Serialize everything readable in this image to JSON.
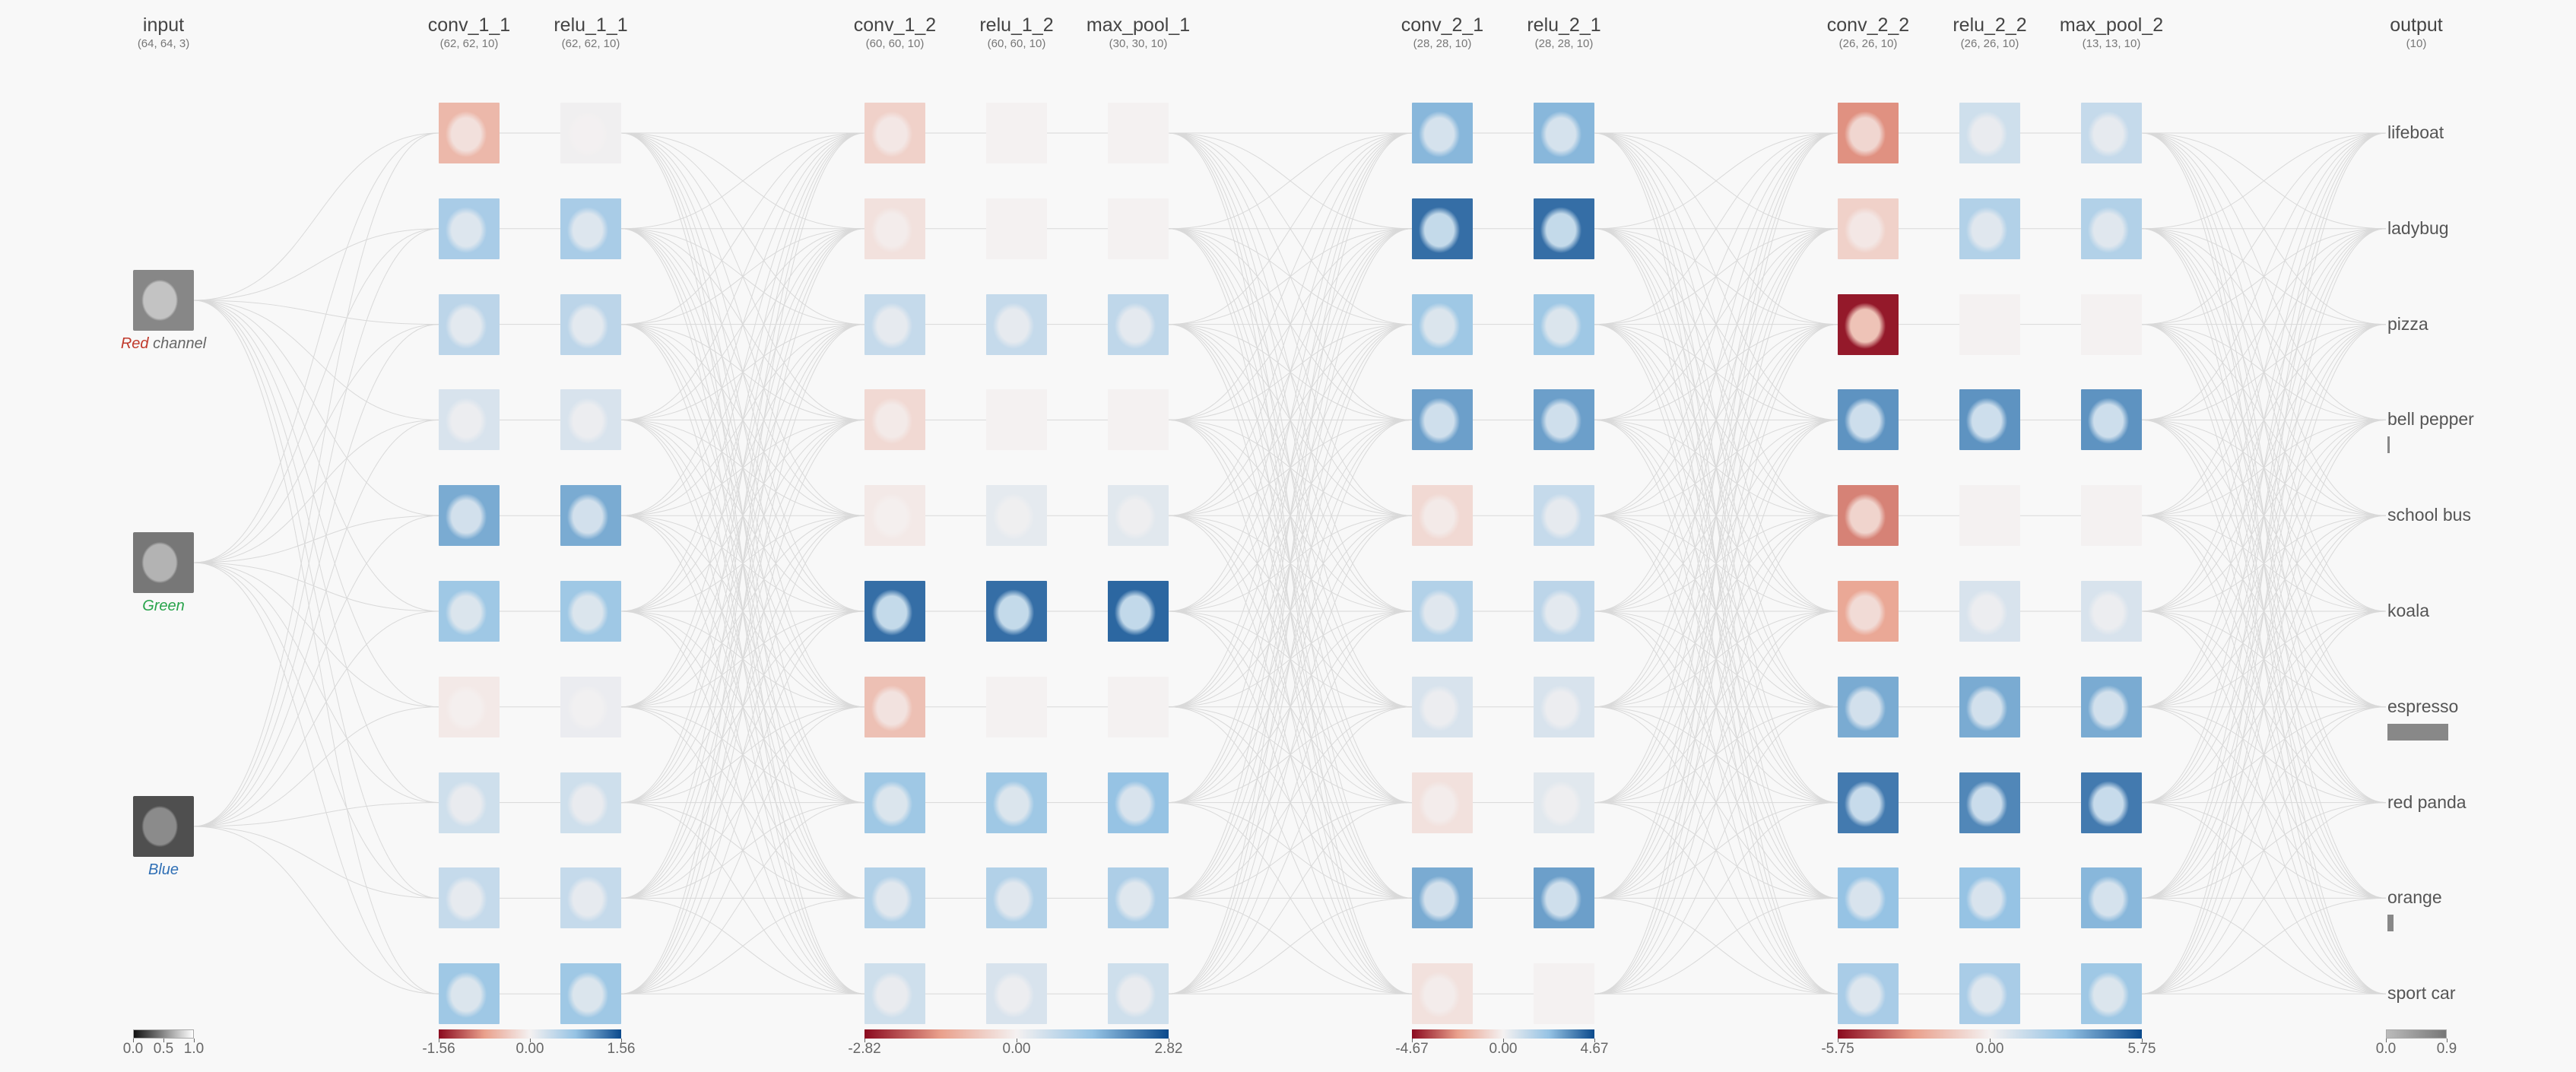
{
  "columns": [
    {
      "id": "input",
      "title": "input",
      "dims": "(64, 64, 3)"
    },
    {
      "id": "conv_1_1",
      "title": "conv_1_1",
      "dims": "(62, 62, 10)"
    },
    {
      "id": "relu_1_1",
      "title": "relu_1_1",
      "dims": "(62, 62, 10)"
    },
    {
      "id": "conv_1_2",
      "title": "conv_1_2",
      "dims": "(60, 60, 10)"
    },
    {
      "id": "relu_1_2",
      "title": "relu_1_2",
      "dims": "(60, 60, 10)"
    },
    {
      "id": "max_pool_1",
      "title": "max_pool_1",
      "dims": "(30, 30, 10)"
    },
    {
      "id": "conv_2_1",
      "title": "conv_2_1",
      "dims": "(28, 28, 10)"
    },
    {
      "id": "relu_2_1",
      "title": "relu_2_1",
      "dims": "(28, 28, 10)"
    },
    {
      "id": "conv_2_2",
      "title": "conv_2_2",
      "dims": "(26, 26, 10)"
    },
    {
      "id": "relu_2_2",
      "title": "relu_2_2",
      "dims": "(26, 26, 10)"
    },
    {
      "id": "max_pool_2",
      "title": "max_pool_2",
      "dims": "(13, 13, 10)"
    },
    {
      "id": "output",
      "title": "output",
      "dims": "(10)"
    }
  ],
  "input_channels": [
    {
      "name": "Red",
      "suffix": " channel",
      "color": "#c0392b",
      "darkness": 0.25
    },
    {
      "name": "Green",
      "suffix": "",
      "color": "#27a34a",
      "darkness": 0.35
    },
    {
      "name": "Blue",
      "suffix": "",
      "color": "#2f6fb5",
      "darkness": 0.6
    }
  ],
  "feature_maps": {
    "conv_1_1": [
      -0.35,
      0.4,
      0.3,
      0.15,
      0.6,
      0.45,
      -0.05,
      0.2,
      0.25,
      0.45
    ],
    "relu_1_1": [
      0.02,
      0.4,
      0.3,
      0.15,
      0.6,
      0.45,
      0.05,
      0.2,
      0.25,
      0.45
    ],
    "conv_1_2": [
      -0.2,
      -0.1,
      0.25,
      -0.15,
      -0.05,
      0.85,
      -0.3,
      0.45,
      0.35,
      0.2
    ],
    "relu_1_2": [
      0.0,
      0.0,
      0.25,
      0.0,
      0.08,
      0.85,
      0.0,
      0.45,
      0.35,
      0.15
    ],
    "max_pool_1": [
      0.0,
      0.0,
      0.28,
      0.0,
      0.1,
      0.88,
      0.0,
      0.5,
      0.38,
      0.2
    ],
    "conv_2_1": [
      0.55,
      0.85,
      0.45,
      0.65,
      -0.15,
      0.35,
      0.15,
      -0.1,
      0.6,
      -0.1
    ],
    "relu_2_1": [
      0.55,
      0.85,
      0.45,
      0.65,
      0.25,
      0.3,
      0.15,
      0.1,
      0.65,
      0.0
    ],
    "conv_2_2": [
      -0.55,
      -0.2,
      -0.95,
      0.7,
      -0.6,
      -0.45,
      0.6,
      0.8,
      0.5,
      0.4
    ],
    "relu_2_2": [
      0.2,
      0.35,
      0.0,
      0.7,
      0.0,
      0.15,
      0.6,
      0.75,
      0.5,
      0.4
    ],
    "max_pool_2": [
      0.25,
      0.35,
      0.0,
      0.7,
      0.0,
      0.15,
      0.6,
      0.8,
      0.55,
      0.45
    ]
  },
  "outputs": [
    {
      "label": "lifeboat",
      "prob": 0.0
    },
    {
      "label": "ladybug",
      "prob": 0.0
    },
    {
      "label": "pizza",
      "prob": 0.0
    },
    {
      "label": "bell pepper",
      "prob": 0.02
    },
    {
      "label": "school bus",
      "prob": 0.0
    },
    {
      "label": "koala",
      "prob": 0.0
    },
    {
      "label": "espresso",
      "prob": 0.8
    },
    {
      "label": "red panda",
      "prob": 0.0
    },
    {
      "label": "orange",
      "prob": 0.08
    },
    {
      "label": "sport car",
      "prob": 0.0
    }
  ],
  "colorbars": [
    {
      "id": "input",
      "kind": "gray",
      "ticks": [
        "0.0",
        "0.5",
        "1.0"
      ]
    },
    {
      "id": "layer1",
      "kind": "diverging",
      "ticks": [
        "-1.56",
        "0.00",
        "1.56"
      ]
    },
    {
      "id": "layer2",
      "kind": "diverging",
      "ticks": [
        "-2.82",
        "0.00",
        "2.82"
      ]
    },
    {
      "id": "layer3",
      "kind": "diverging",
      "ticks": [
        "-4.67",
        "0.00",
        "4.67"
      ]
    },
    {
      "id": "layer4",
      "kind": "diverging",
      "ticks": [
        "-5.75",
        "0.00",
        "5.75"
      ]
    },
    {
      "id": "output",
      "kind": "gray",
      "ticks": [
        "0.0",
        "0.9"
      ]
    }
  ],
  "colors": {
    "negative": "#8b0a1f",
    "positive": "#0b4a8c",
    "neutral": "#f4f1f1",
    "edge": "#d9d9d9",
    "output_bar": "#888888"
  }
}
